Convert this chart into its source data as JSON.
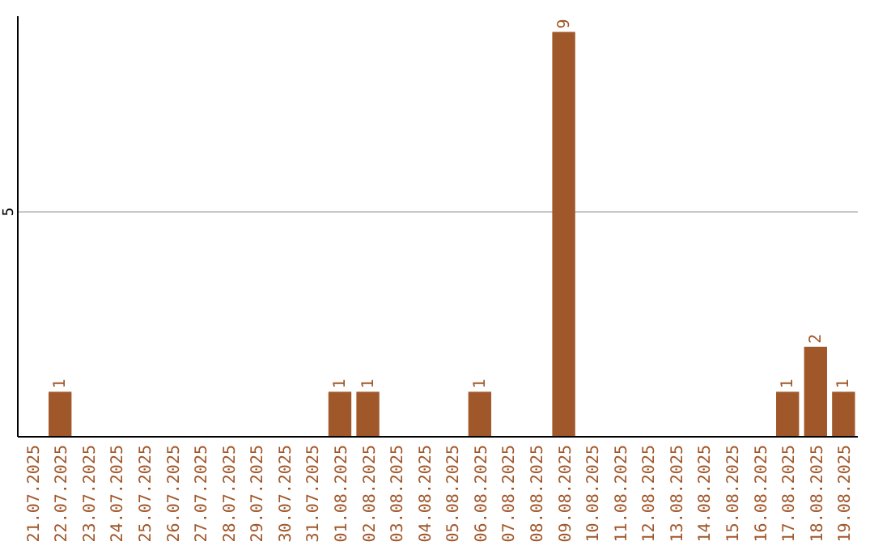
{
  "chart_data": {
    "type": "bar",
    "categories": [
      "21.07.2025",
      "22.07.2025",
      "23.07.2025",
      "24.07.2025",
      "25.07.2025",
      "26.07.2025",
      "27.07.2025",
      "28.07.2025",
      "29.07.2025",
      "30.07.2025",
      "31.07.2025",
      "01.08.2025",
      "02.08.2025",
      "03.08.2025",
      "04.08.2025",
      "05.08.2025",
      "06.08.2025",
      "07.08.2025",
      "08.08.2025",
      "09.08.2025",
      "10.08.2025",
      "11.08.2025",
      "12.08.2025",
      "13.08.2025",
      "14.08.2025",
      "15.08.2025",
      "16.08.2025",
      "17.08.2025",
      "18.08.2025",
      "19.08.2025"
    ],
    "values": [
      0,
      1,
      0,
      0,
      0,
      0,
      0,
      0,
      0,
      0,
      0,
      1,
      1,
      0,
      0,
      0,
      1,
      0,
      0,
      9,
      0,
      0,
      0,
      0,
      0,
      0,
      0,
      1,
      2,
      1
    ],
    "value_labels": [
      null,
      "1",
      null,
      null,
      null,
      null,
      null,
      null,
      null,
      null,
      null,
      "1",
      "1",
      null,
      null,
      null,
      "1",
      null,
      null,
      "9",
      null,
      null,
      null,
      null,
      null,
      null,
      null,
      "1",
      "2",
      "1"
    ],
    "color": "#a0572a",
    "ylim": [
      0,
      9.35
    ],
    "yticks": [
      5
    ],
    "grid": "y"
  }
}
